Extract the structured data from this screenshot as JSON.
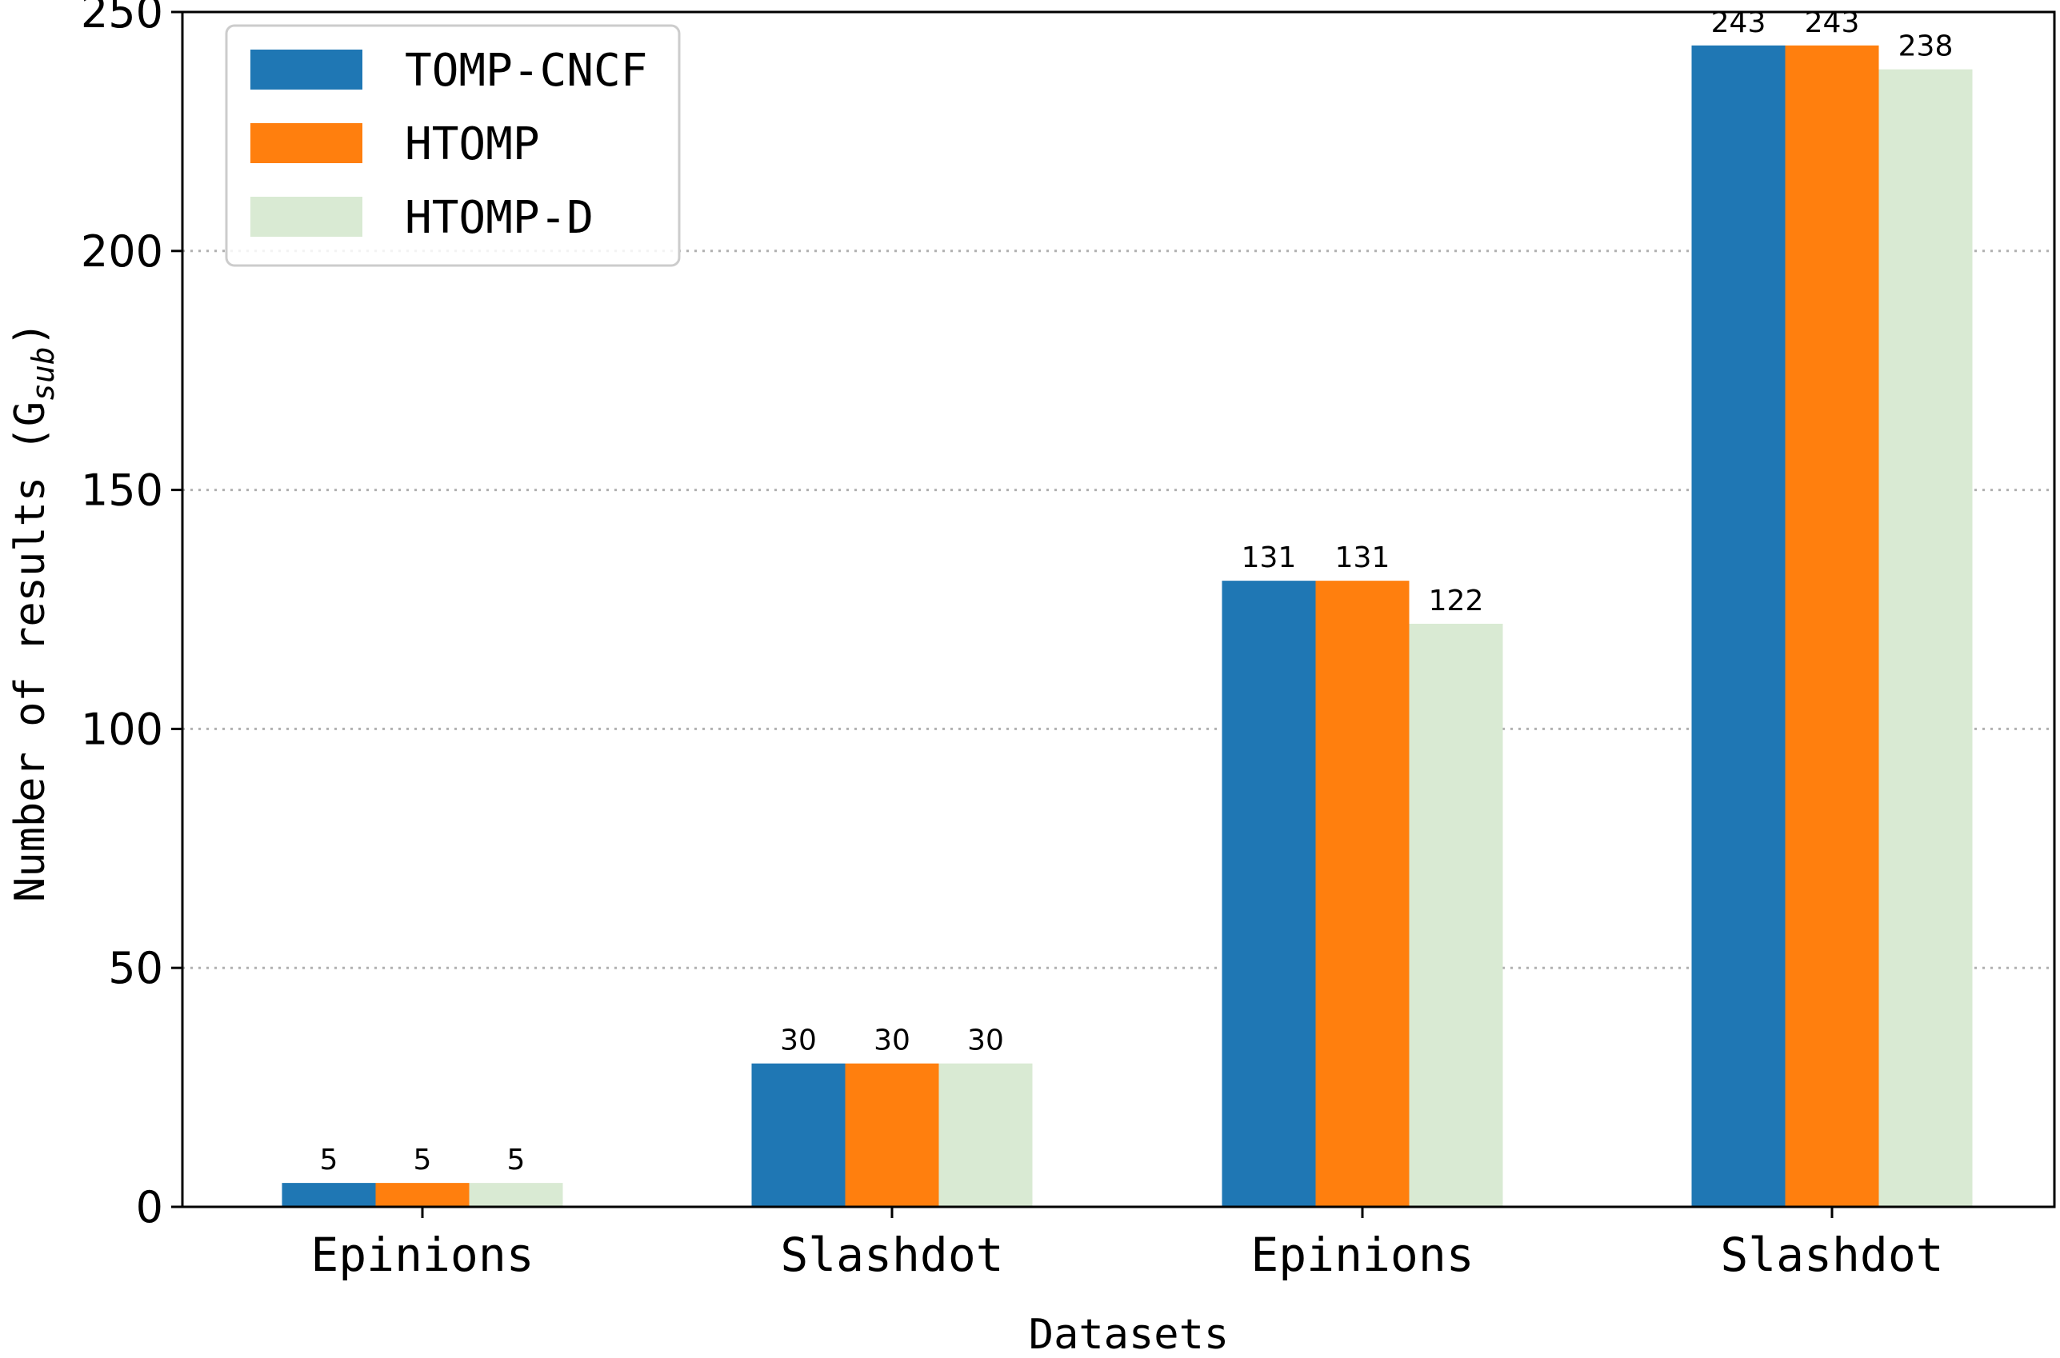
{
  "chart_data": {
    "type": "bar",
    "categories": [
      "Epinions",
      "Slashdot",
      "Epinions",
      "Slashdot"
    ],
    "series": [
      {
        "name": "TOMP-CNCF",
        "color": "#1f77b4",
        "values": [
          5,
          30,
          131,
          243
        ]
      },
      {
        "name": "HTOMP",
        "color": "#ff7f0e",
        "values": [
          5,
          30,
          131,
          243
        ]
      },
      {
        "name": "HTOMP-D",
        "color": "#d9ead3",
        "values": [
          5,
          30,
          122,
          238
        ]
      }
    ],
    "data_labels": [
      [
        "5",
        "30",
        "131",
        "243"
      ],
      [
        "5",
        "30",
        "131",
        "243"
      ],
      [
        "5",
        "30",
        "122",
        "238"
      ]
    ],
    "xlabel": "Datasets",
    "ylabel": {
      "main": "Number of results (G",
      "subscript": "sub",
      "suffix": ")"
    },
    "ylim": [
      0,
      250
    ],
    "yticks": [
      0,
      50,
      100,
      150,
      200,
      250
    ],
    "ytick_labels": [
      "0",
      "50",
      "100",
      "150",
      "200",
      "250"
    ],
    "grid": "y-dotted",
    "legend_position": "top-left"
  }
}
